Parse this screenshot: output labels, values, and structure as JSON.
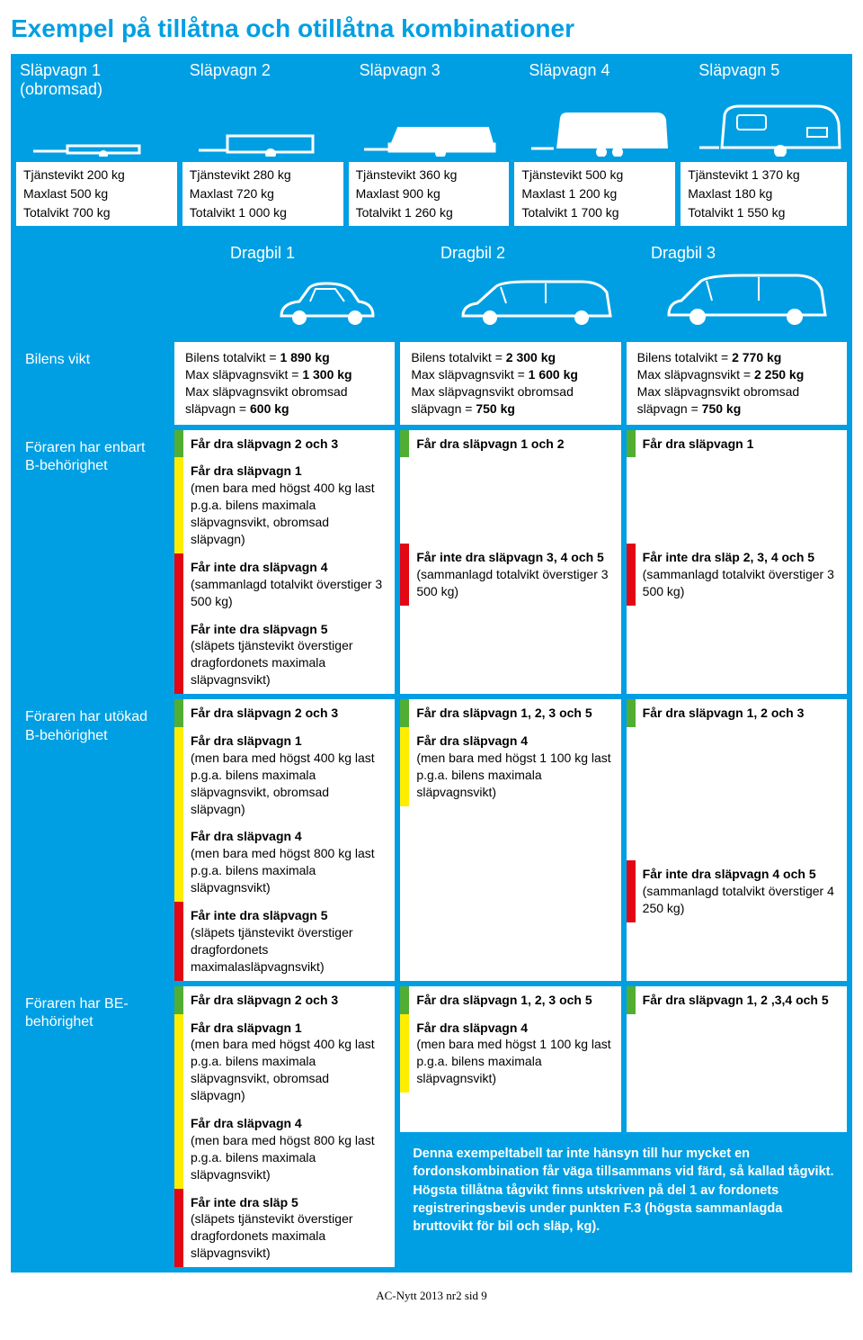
{
  "title": "Exempel på tillåtna och otillåtna kombinationer",
  "trailer_headers": [
    "Släpvagn 1\n(obromsad)",
    "Släpvagn 2",
    "Släpvagn 3",
    "Släpvagn 4",
    "Släpvagn 5"
  ],
  "trailer_specs": [
    [
      "Tjänstevikt 200 kg",
      "Maxlast 500 kg",
      "Totalvikt 700 kg"
    ],
    [
      "Tjänstevikt 280 kg",
      "Maxlast 720 kg",
      "Totalvikt 1 000 kg"
    ],
    [
      "Tjänstevikt 360 kg",
      "Maxlast 900 kg",
      "Totalvikt 1 260 kg"
    ],
    [
      "Tjänstevikt 500 kg",
      "Maxlast 1 200 kg",
      "Totalvikt 1 700 kg"
    ],
    [
      "Tjänstevikt 1 370 kg",
      "Maxlast 180 kg",
      "Totalvikt 1 550 kg"
    ]
  ],
  "dragbil_headers": [
    "Dragbil 1",
    "Dragbil 2",
    "Dragbil 3"
  ],
  "row_labels": [
    "Bilens vikt",
    "Föraren har enbart B-behörighet",
    "Föraren har utökad B-behörighet",
    "Föraren har BE-behörighet"
  ],
  "bilens_vikt": [
    [
      "Bilens totalvikt = 1 890 kg",
      "Max släpvagnsvikt = 1 300 kg",
      "Max släpvagnsvikt obromsad släpvagn = 600 kg"
    ],
    [
      "Bilens totalvikt = 2 300 kg",
      "Max släpvagnsvikt = 1 600 kg",
      "Max släpvagnsvikt obromsad släpvagn = 750 kg"
    ],
    [
      "Bilens totalvikt = 2 770 kg",
      "Max släpvagnsvikt = 2 250 kg",
      "Max släpvagnsvikt obromsad släpvagn = 750 kg"
    ]
  ],
  "b_enbart": {
    "c1": [
      {
        "bar": "g",
        "b": "Får dra släpvagn 2 och 3",
        "t": ""
      },
      {
        "bar": "y",
        "b": "Får dra släpvagn 1",
        "t": "(men bara med högst 400 kg last p.g.a. bilens maximala släpvagnsvikt, obromsad släpvagn)"
      },
      {
        "bar": "r",
        "b": "Får inte dra släpvagn 4",
        "t": "(sammanlagd totalvikt överstiger 3 500 kg)"
      },
      {
        "bar": "r",
        "b": "Får inte dra släpvagn 5",
        "t": "(släpets tjänstevikt överstiger dragfordonets maximala släpvagnsvikt)"
      }
    ],
    "c2": [
      {
        "bar": "g",
        "b": "Får dra släpvagn 1 och 2",
        "t": ""
      },
      {
        "bar": "r",
        "b": "Får inte dra släpvagn 3, 4 och 5",
        "t": "(sammanlagd totalvikt överstiger 3 500 kg)"
      }
    ],
    "c3": [
      {
        "bar": "g",
        "b": "Får dra släpvagn 1",
        "t": ""
      },
      {
        "bar": "r",
        "b": "Får inte dra släp 2, 3, 4 och 5",
        "t": "(sammanlagd totalvikt överstiger 3 500 kg)"
      }
    ]
  },
  "b_utokad": {
    "c1": [
      {
        "bar": "g",
        "b": "Får dra släpvagn 2 och 3",
        "t": ""
      },
      {
        "bar": "y",
        "b": "Får dra släpvagn 1",
        "t": "(men bara med högst 400 kg last p.g.a. bilens maximala släpvagnsvikt, obromsad släpvagn)"
      },
      {
        "bar": "y",
        "b": "Får dra släpvagn 4",
        "t": "(men bara med högst 800 kg last p.g.a. bilens maximala släpvagnsvikt)"
      },
      {
        "bar": "r",
        "b": "Får inte dra släpvagn 5",
        "t": "(släpets tjänstevikt överstiger dragfordonets maximalasläpvagnsvikt)"
      }
    ],
    "c2": [
      {
        "bar": "g",
        "b": "Får dra släpvagn 1, 2, 3 och 5",
        "t": ""
      },
      {
        "bar": "y",
        "b": "Får dra släpvagn 4",
        "t": "(men bara med högst 1 100 kg last p.g.a. bilens maximala släpvagnsvikt)"
      }
    ],
    "c3": [
      {
        "bar": "g",
        "b": "Får dra släpvagn 1, 2 och 3",
        "t": ""
      },
      {
        "bar": "r",
        "b": "Får inte dra släpvagn 4 och 5",
        "t": "(sammanlagd totalvikt överstiger 4 250 kg)"
      }
    ]
  },
  "be": {
    "c1": [
      {
        "bar": "g",
        "b": "Får dra släpvagn 2 och 3",
        "t": ""
      },
      {
        "bar": "y",
        "b": "Får dra släpvagn 1",
        "t": "(men bara med högst 400 kg last p.g.a. bilens maximala släpvagnsvikt, obromsad släpvagn)"
      },
      {
        "bar": "y",
        "b": "Får dra släpvagn 4",
        "t": "(men bara med högst 800 kg last p.g.a. bilens maximala släpvagnsvikt)"
      },
      {
        "bar": "r",
        "b": "Får inte dra släp 5",
        "t": "(släpets tjänstevikt överstiger dragfordonets maximala släpvagnsvikt)"
      }
    ],
    "c2": [
      {
        "bar": "g",
        "b": "Får dra släpvagn 1, 2, 3 och 5",
        "t": ""
      },
      {
        "bar": "y",
        "b": "Får dra släpvagn 4",
        "t": "(men bara med högst 1 100 kg last p.g.a. bilens maximala släpvagnsvikt)"
      }
    ],
    "c3": [
      {
        "bar": "g",
        "b": "Får dra släpvagn 1, 2 ,3,4 och 5",
        "t": ""
      }
    ]
  },
  "note": "Denna exempeltabell tar inte hänsyn till hur mycket en fordonskombination får väga tillsammans vid färd, så kallad tågvikt. Högsta tillåtna tågvikt finns utskriven på del 1 av fordonets registreringsbevis under punkten F.3 (högsta sammanlagda bruttovikt för bil och släp, kg).",
  "footer": "AC-Nytt 2013 nr2 sid 9",
  "colors": {
    "blue": "#009fe3",
    "green": "#52ae32",
    "yellow": "#ffed00",
    "red": "#e30613"
  }
}
